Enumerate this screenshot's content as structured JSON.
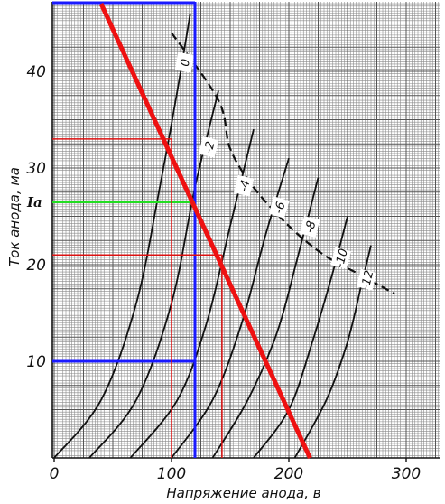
{
  "chart_data": {
    "type": "line",
    "title": "",
    "xlabel": "Напряжение анода, в",
    "ylabel": "Ток анода, ма",
    "xlim": [
      0,
      320
    ],
    "ylim": [
      0,
      47
    ],
    "x_ticks": [
      "0",
      "100",
      "200",
      "300"
    ],
    "y_ticks": [
      "10",
      "20",
      "30",
      "40"
    ],
    "grid": true,
    "series": [
      {
        "name": "0",
        "points": [
          [
            0,
            0
          ],
          [
            40,
            6
          ],
          [
            70,
            16
          ],
          [
            90,
            28
          ],
          [
            105,
            38
          ],
          [
            116,
            46
          ]
        ]
      },
      {
        "name": "-2",
        "points": [
          [
            30,
            0
          ],
          [
            70,
            6
          ],
          [
            100,
            16
          ],
          [
            120,
            28
          ],
          [
            140,
            38
          ]
        ]
      },
      {
        "name": "-4",
        "points": [
          [
            65,
            0
          ],
          [
            105,
            6
          ],
          [
            130,
            14
          ],
          [
            150,
            24
          ],
          [
            170,
            34
          ]
        ]
      },
      {
        "name": "-6",
        "points": [
          [
            100,
            0
          ],
          [
            135,
            6
          ],
          [
            160,
            14
          ],
          [
            180,
            23
          ],
          [
            200,
            31
          ]
        ]
      },
      {
        "name": "-8",
        "points": [
          [
            135,
            0
          ],
          [
            165,
            6
          ],
          [
            190,
            13
          ],
          [
            208,
            21
          ],
          [
            225,
            29
          ]
        ]
      },
      {
        "name": "-10",
        "points": [
          [
            170,
            0
          ],
          [
            200,
            5
          ],
          [
            220,
            12
          ],
          [
            237,
            19
          ],
          [
            250,
            25
          ]
        ]
      },
      {
        "name": "-12",
        "points": [
          [
            205,
            0
          ],
          [
            232,
            6
          ],
          [
            250,
            12
          ],
          [
            262,
            18
          ],
          [
            270,
            22
          ]
        ]
      }
    ],
    "max_dissipation_curve": [
      [
        100,
        44
      ],
      [
        140,
        37
      ],
      [
        150,
        32
      ],
      [
        170,
        28
      ],
      [
        200,
        24
      ],
      [
        230,
        21
      ],
      [
        260,
        19
      ],
      [
        290,
        17
      ]
    ],
    "load_line": [
      [
        40,
        47
      ],
      [
        218,
        0
      ]
    ],
    "operating_point": {
      "ia_label": "Ia",
      "ua": 120,
      "ia": 26.5,
      "ia_at_low": 10
    },
    "swing_markers": {
      "low_u": 100,
      "high_u": 143,
      "high_i": 33,
      "low_i": 21
    }
  }
}
